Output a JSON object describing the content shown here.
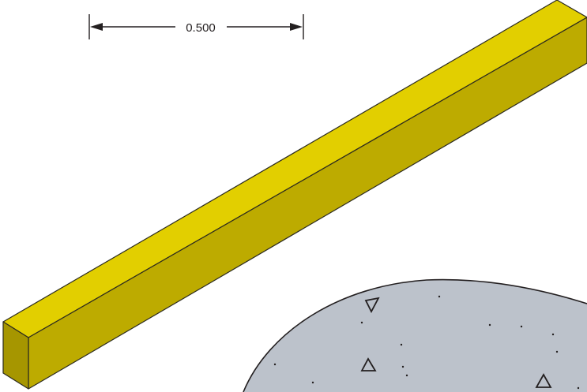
{
  "dimension": {
    "label": "0.500",
    "line_color": "#231f20"
  },
  "bar": {
    "top_color": "#e2cf00",
    "front_color": "#bdab00",
    "end_color": "#a69600",
    "edge_color": "#2b2a1f"
  },
  "concrete": {
    "fill_color": "#bcc2cb",
    "edge_color": "#231f20",
    "aggregate_icon": "triangle-aggregate-icon",
    "dot_icon": "dot-aggregate-icon"
  }
}
